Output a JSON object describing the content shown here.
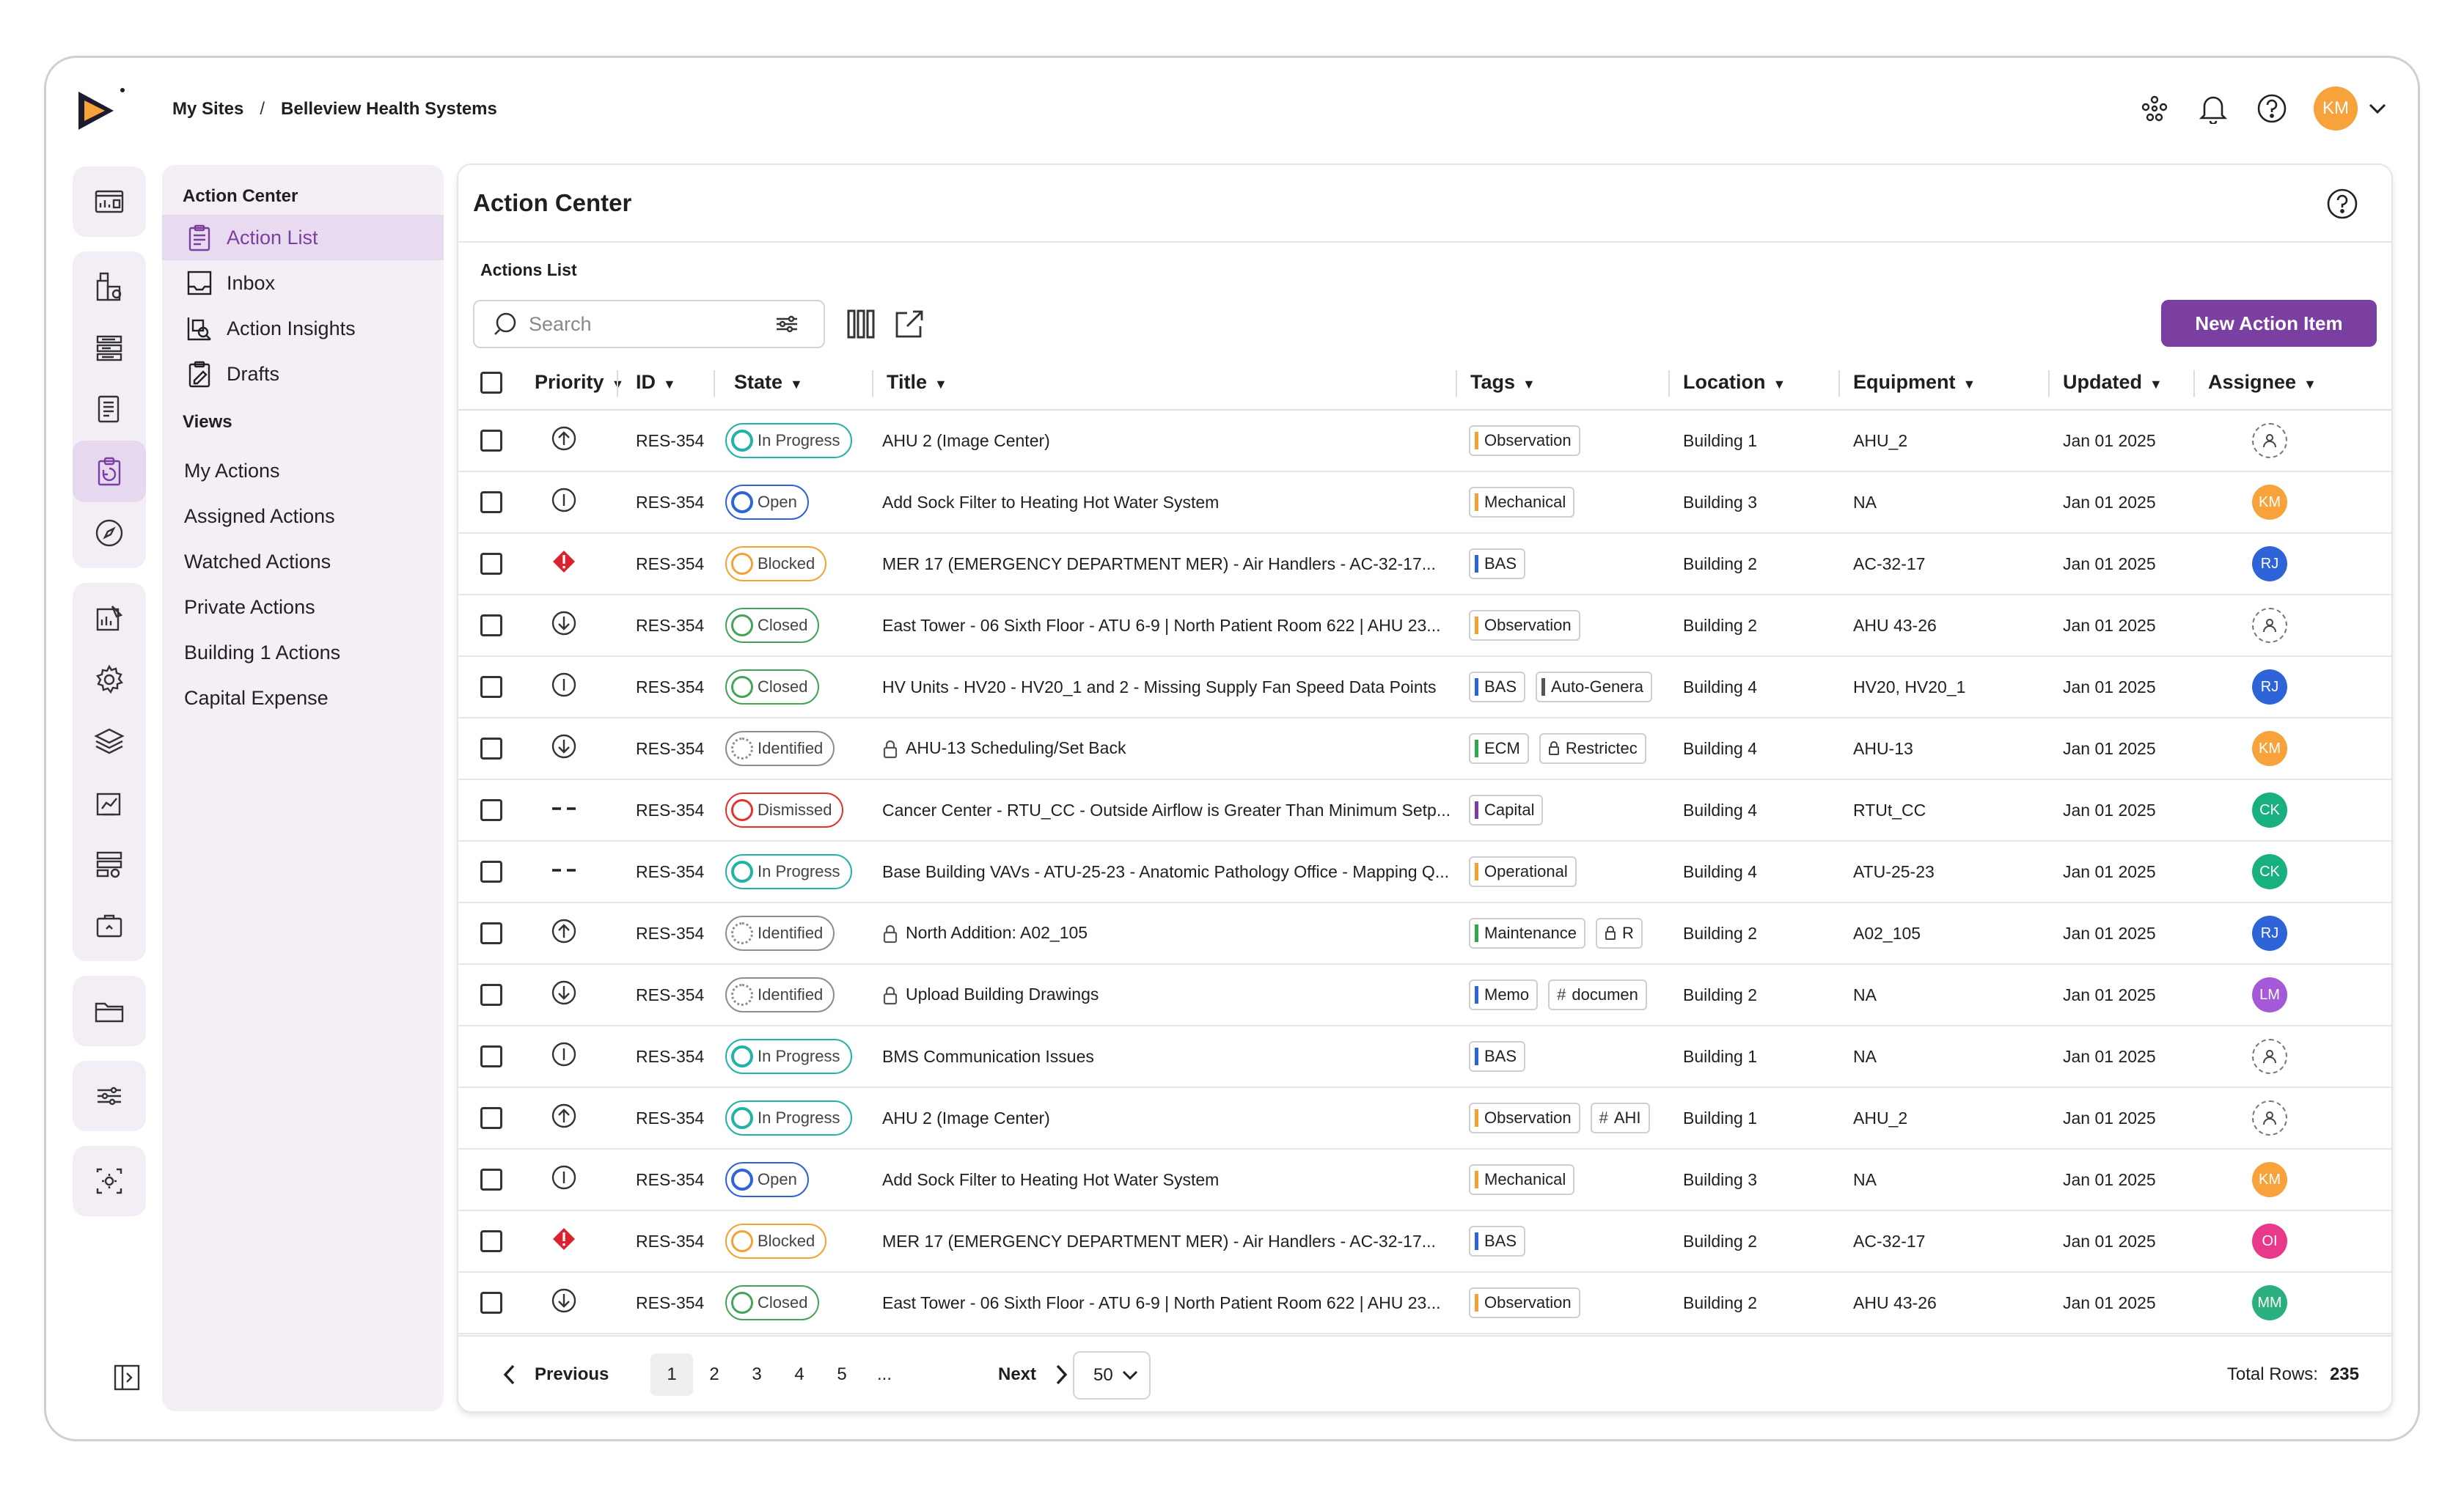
{
  "breadcrumb": {
    "root": "My Sites",
    "separator": "/",
    "current": "Belleview Health Systems"
  },
  "user": {
    "initials": "KM",
    "color": "#f7a23b"
  },
  "sidebar": {
    "section_title": "Action Center",
    "items": [
      {
        "label": "Action List",
        "icon": "clipboard-icon",
        "active": true
      },
      {
        "label": "Inbox",
        "icon": "inbox-icon",
        "active": false
      },
      {
        "label": "Action Insights",
        "icon": "insights-icon",
        "active": false
      },
      {
        "label": "Drafts",
        "icon": "drafts-icon",
        "active": false
      }
    ],
    "views_title": "Views",
    "views": [
      "My Actions",
      "Assigned Actions",
      "Watched Actions",
      "Private Actions",
      "Building 1 Actions",
      "Capital Expense"
    ]
  },
  "card": {
    "title": "Action Center",
    "subtitle": "Actions List"
  },
  "toolbar": {
    "search_placeholder": "Search",
    "new_button": "New Action Item"
  },
  "columns": {
    "priority": "Priority",
    "id": "ID",
    "state": "State",
    "title": "Title",
    "tags": "Tags",
    "location": "Location",
    "equipment": "Equipment",
    "updated": "Updated",
    "assignee": "Assignee"
  },
  "accent": "#7b3ea1",
  "rows": [
    {
      "priority": "up",
      "id": "RES-354",
      "state": "In Progress",
      "st": "inprog",
      "title": "AHU 2 (Image Center)",
      "locked": false,
      "tags": [
        [
          "Observation",
          "#f3a335"
        ]
      ],
      "location": "Building 1",
      "equipment": "AHU_2",
      "updated": "Jan 01 2025",
      "assignee": "",
      "av_color": ""
    },
    {
      "priority": "info",
      "id": "RES-354",
      "state": "Open",
      "st": "open",
      "title": "Add Sock Filter to Heating Hot Water System",
      "locked": false,
      "tags": [
        [
          "Mechanical",
          "#f3a335"
        ]
      ],
      "location": "Building 3",
      "equipment": "NA",
      "updated": "Jan 01 2025",
      "assignee": "KM",
      "av_color": "#f7a23b"
    },
    {
      "priority": "critical",
      "id": "RES-354",
      "state": "Blocked",
      "st": "blocked",
      "title": "MER 17 (EMERGENCY DEPARTMENT MER) - Air Handlers - AC-32-17...",
      "locked": false,
      "tags": [
        [
          "BAS",
          "#2f63d8"
        ]
      ],
      "location": "Building 2",
      "equipment": "AC-32-17",
      "updated": "Jan 01 2025",
      "assignee": "RJ",
      "av_color": "#2f63d8"
    },
    {
      "priority": "down",
      "id": "RES-354",
      "state": "Closed",
      "st": "closed",
      "title": "East Tower - 06 Sixth Floor - ATU 6-9 | North Patient Room 622 | AHU 23...",
      "locked": false,
      "tags": [
        [
          "Observation",
          "#f3a335"
        ]
      ],
      "location": "Building 2",
      "equipment": "AHU 43-26",
      "updated": "Jan 01 2025",
      "assignee": "",
      "av_color": ""
    },
    {
      "priority": "info",
      "id": "RES-354",
      "state": "Closed",
      "st": "closed",
      "title": "HV Units - HV20 - HV20_1 and 2 - Missing Supply Fan Speed Data Points",
      "locked": false,
      "tags": [
        [
          "BAS",
          "#2f63d8"
        ],
        [
          "Auto-Genera",
          "#555555"
        ]
      ],
      "location": "Building 4",
      "equipment": "HV20, HV20_1",
      "updated": "Jan 01 2025",
      "assignee": "RJ",
      "av_color": "#2f63d8"
    },
    {
      "priority": "down",
      "id": "RES-354",
      "state": "Identified",
      "st": "ident",
      "title": "AHU-13 Scheduling/Set Back",
      "locked": true,
      "tags": [
        [
          "ECM",
          "#2ea84a"
        ],
        [
          "Restrictec",
          "lock"
        ]
      ],
      "location": "Building 4",
      "equipment": "AHU-13",
      "updated": "Jan 01 2025",
      "assignee": "KM",
      "av_color": "#f7a23b"
    },
    {
      "priority": "none",
      "id": "RES-354",
      "state": "Dismissed",
      "st": "dism",
      "title": "Cancer Center - RTU_CC - Outside Airflow is Greater Than Minimum Setp...",
      "locked": false,
      "tags": [
        [
          "Capital",
          "#7b3ea1"
        ]
      ],
      "location": "Building 4",
      "equipment": "RTUt_CC",
      "updated": "Jan 01 2025",
      "assignee": "CK",
      "av_color": "#18b07e"
    },
    {
      "priority": "none",
      "id": "RES-354",
      "state": "In Progress",
      "st": "inprog",
      "title": "Base Building VAVs - ATU-25-23 - Anatomic Pathology Office - Mapping Q...",
      "locked": false,
      "tags": [
        [
          "Operational",
          "#f3a335"
        ]
      ],
      "location": "Building 4",
      "equipment": "ATU-25-23",
      "updated": "Jan 01 2025",
      "assignee": "CK",
      "av_color": "#18b07e"
    },
    {
      "priority": "up",
      "id": "RES-354",
      "state": "Identified",
      "st": "ident",
      "title": "North Addition: A02_105",
      "locked": true,
      "tags": [
        [
          "Maintenance",
          "#2ea84a"
        ],
        [
          "R",
          "lock"
        ]
      ],
      "location": "Building 2",
      "equipment": "A02_105",
      "updated": "Jan 01 2025",
      "assignee": "RJ",
      "av_color": "#2f63d8"
    },
    {
      "priority": "down",
      "id": "RES-354",
      "state": "Identified",
      "st": "ident",
      "title": "Upload Building Drawings",
      "locked": true,
      "tags": [
        [
          "Memo",
          "#2f63d8"
        ],
        [
          "documen",
          "hash"
        ]
      ],
      "location": "Building 2",
      "equipment": "NA",
      "updated": "Jan 01 2025",
      "assignee": "LM",
      "av_color": "#a45ad8"
    },
    {
      "priority": "info",
      "id": "RES-354",
      "state": "In Progress",
      "st": "inprog",
      "title": "BMS Communication Issues",
      "locked": false,
      "tags": [
        [
          "BAS",
          "#2f63d8"
        ]
      ],
      "location": "Building 1",
      "equipment": "NA",
      "updated": "Jan 01 2025",
      "assignee": "",
      "av_color": ""
    },
    {
      "priority": "up",
      "id": "RES-354",
      "state": "In Progress",
      "st": "inprog",
      "title": "AHU 2 (Image Center)",
      "locked": false,
      "tags": [
        [
          "Observation",
          "#f3a335"
        ],
        [
          "AHI",
          "hash"
        ]
      ],
      "location": "Building 1",
      "equipment": "AHU_2",
      "updated": "Jan 01 2025",
      "assignee": "",
      "av_color": ""
    },
    {
      "priority": "info",
      "id": "RES-354",
      "state": "Open",
      "st": "open",
      "title": "Add Sock Filter to Heating Hot Water System",
      "locked": false,
      "tags": [
        [
          "Mechanical",
          "#f3a335"
        ]
      ],
      "location": "Building 3",
      "equipment": "NA",
      "updated": "Jan 01 2025",
      "assignee": "KM",
      "av_color": "#f7a23b"
    },
    {
      "priority": "critical",
      "id": "RES-354",
      "state": "Blocked",
      "st": "blocked",
      "title": "MER 17 (EMERGENCY DEPARTMENT MER) - Air Handlers - AC-32-17...",
      "locked": false,
      "tags": [
        [
          "BAS",
          "#2f63d8"
        ]
      ],
      "location": "Building 2",
      "equipment": "AC-32-17",
      "updated": "Jan 01 2025",
      "assignee": "OI",
      "av_color": "#e8398a"
    },
    {
      "priority": "down",
      "id": "RES-354",
      "state": "Closed",
      "st": "closed",
      "title": "East Tower - 06 Sixth Floor - ATU 6-9 | North Patient Room 622 | AHU 23...",
      "locked": false,
      "tags": [
        [
          "Observation",
          "#f3a335"
        ]
      ],
      "location": "Building 2",
      "equipment": "AHU 43-26",
      "updated": "Jan 01 2025",
      "assignee": "MM",
      "av_color": "#2ab07e"
    }
  ],
  "pagination": {
    "previous": "Previous",
    "next": "Next",
    "pages": [
      "1",
      "2",
      "3",
      "4",
      "5",
      "..."
    ],
    "current": "1",
    "per_page": "50",
    "total_label": "Total Rows:",
    "total": "235"
  }
}
